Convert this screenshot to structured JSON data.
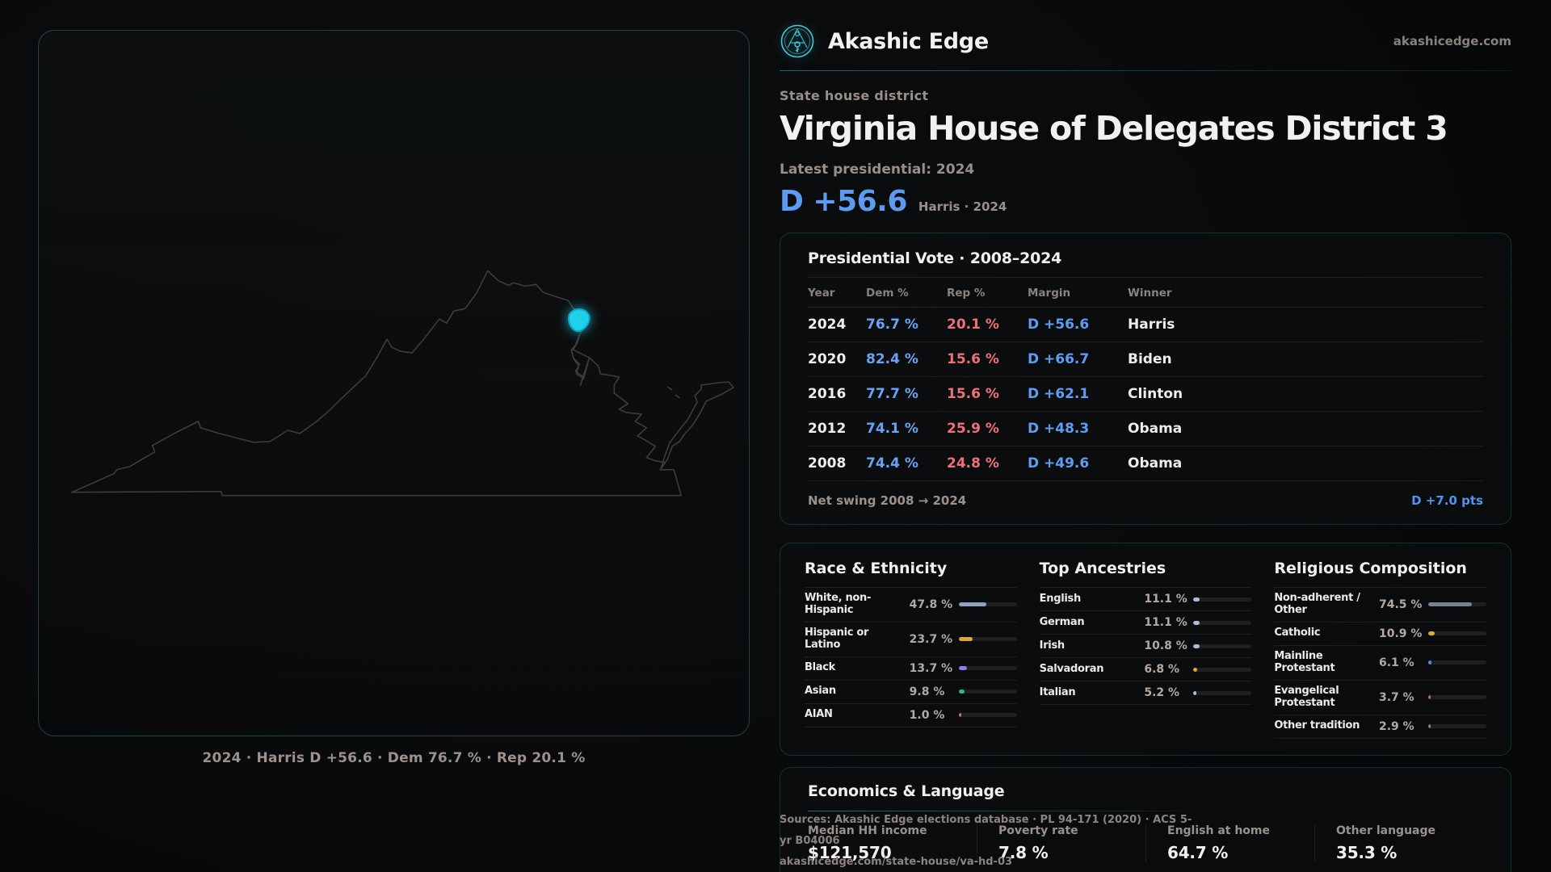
{
  "colors": {
    "accent_cyan": "#3ecbdc",
    "dem_blue": "#5d9bf2",
    "rep_red": "#ee707a",
    "district_highlight": "#1fd0ea",
    "state_outline": "#3a3d3f",
    "bar_track": "#1d1f21"
  },
  "brand": {
    "name": "Akashic Edge",
    "domain": "akashicedge.com"
  },
  "header": {
    "kicker": "State house district",
    "title": "Virginia House of Delegates District 3",
    "latest": "Latest presidential: 2024",
    "margin_headline": "D +56.6",
    "margin_context": "Harris · 2024"
  },
  "map": {
    "caption": "2024 · Harris D +56.6 · Dem 76.7 % · Rep 20.1 %"
  },
  "presidential": {
    "title": "Presidential Vote · 2008–2024",
    "columns": [
      "Year",
      "Dem %",
      "Rep %",
      "Margin",
      "Winner"
    ],
    "rows": [
      {
        "year": "2024",
        "dem": "76.7 %",
        "rep": "20.1 %",
        "margin": "D +56.6",
        "winner": "Harris"
      },
      {
        "year": "2020",
        "dem": "82.4 %",
        "rep": "15.6 %",
        "margin": "D +66.7",
        "winner": "Biden"
      },
      {
        "year": "2016",
        "dem": "77.7 %",
        "rep": "15.6 %",
        "margin": "D +62.1",
        "winner": "Clinton"
      },
      {
        "year": "2012",
        "dem": "74.1 %",
        "rep": "25.9 %",
        "margin": "D +48.3",
        "winner": "Obama"
      },
      {
        "year": "2008",
        "dem": "74.4 %",
        "rep": "24.8 %",
        "margin": "D +49.6",
        "winner": "Obama"
      }
    ],
    "net_swing_label": "Net swing 2008 → 2024",
    "net_swing_value": "D +7.0 pts"
  },
  "demographics": [
    {
      "id": "race",
      "title": "Race & Ethnicity",
      "rows": [
        {
          "label": "White, non-Hispanic",
          "value": "47.8 %",
          "pct": 47.8,
          "color": "#8fa3c0"
        },
        {
          "label": "Hispanic or Latino",
          "value": "23.7 %",
          "pct": 23.7,
          "color": "#e7a33b"
        },
        {
          "label": "Black",
          "value": "13.7 %",
          "pct": 13.7,
          "color": "#8e7cf2"
        },
        {
          "label": "Asian",
          "value": "9.8 %",
          "pct": 9.8,
          "color": "#2eb98a"
        },
        {
          "label": "AIAN",
          "value": "1.0 %",
          "pct": 1.0,
          "color": "#cf7a3e"
        }
      ]
    },
    {
      "id": "ancestries",
      "title": "Top Ancestries",
      "rows": [
        {
          "label": "English",
          "value": "11.1 %",
          "pct": 11.1,
          "color": "#a9bdd6"
        },
        {
          "label": "German",
          "value": "11.1 %",
          "pct": 11.1,
          "color": "#a9bdd6"
        },
        {
          "label": "Irish",
          "value": "10.8 %",
          "pct": 10.8,
          "color": "#a9bdd6"
        },
        {
          "label": "Salvadoran",
          "value": "6.8 %",
          "pct": 6.8,
          "color": "#e8a43c"
        },
        {
          "label": "Italian",
          "value": "5.2 %",
          "pct": 5.2,
          "color": "#a9bdd6"
        }
      ]
    },
    {
      "id": "religion",
      "title": "Religious Composition",
      "rows": [
        {
          "label": "Non-adherent / Other",
          "value": "74.5 %",
          "pct": 74.5,
          "color": "#78818f"
        },
        {
          "label": "Catholic",
          "value": "10.9 %",
          "pct": 10.9,
          "color": "#e2ac3a"
        },
        {
          "label": "Mainline Protestant",
          "value": "6.1 %",
          "pct": 6.1,
          "color": "#4b8fe2"
        },
        {
          "label": "Evangelical Protestant",
          "value": "3.7 %",
          "pct": 3.7,
          "color": "#dd5f5f"
        },
        {
          "label": "Other tradition",
          "value": "2.9 %",
          "pct": 2.9,
          "color": "#7d8694"
        }
      ]
    }
  ],
  "economics": {
    "title": "Economics & Language",
    "stats": [
      {
        "label": "Median HH income",
        "value": "$121,570"
      },
      {
        "label": "Poverty rate",
        "value": "7.8 %"
      },
      {
        "label": "English at home",
        "value": "64.7 %"
      },
      {
        "label": "Other language",
        "value": "35.3 %"
      }
    ]
  },
  "sources": {
    "line1": "Sources: Akashic Edge elections database · PL 94-171 (2020) · ACS 5-yr B04006",
    "line2": "akashicedge.com/state-house/va-hd-03"
  }
}
